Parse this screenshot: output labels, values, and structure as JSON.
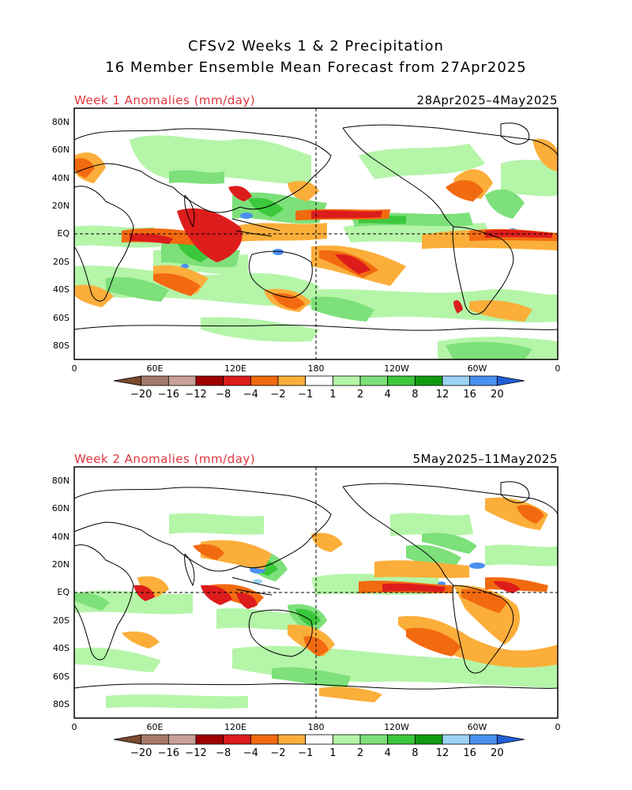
{
  "header": {
    "title_line1": "CFSv2 Weeks 1 & 2 Precipitation",
    "title_line2": "16 Member Ensemble Mean Forecast from 27Apr2025"
  },
  "panels": [
    {
      "label": "Week 1 Anomalies (mm/day)",
      "date_range": "28Apr2025–4May2025",
      "lat_ticks": [
        "80N",
        "60N",
        "40N",
        "20N",
        "EQ",
        "20S",
        "40S",
        "60S",
        "80S"
      ],
      "lon_ticks": [
        "0",
        "60E",
        "120E",
        "180",
        "120W",
        "60W",
        "0"
      ]
    },
    {
      "label": "Week 2 Anomalies (mm/day)",
      "date_range": "5May2025–11May2025",
      "lat_ticks": [
        "80N",
        "60N",
        "40N",
        "20N",
        "EQ",
        "20S",
        "40S",
        "60S",
        "80S"
      ],
      "lon_ticks": [
        "0",
        "60E",
        "120E",
        "180",
        "120W",
        "60W",
        "0"
      ]
    }
  ],
  "colorbar": {
    "labels": [
      "−20",
      "−16",
      "−12",
      "−8",
      "−4",
      "−2",
      "−1",
      "1",
      "2",
      "4",
      "8",
      "12",
      "16",
      "20"
    ],
    "colors": [
      "#7a4a2e",
      "#a67a6a",
      "#c9a098",
      "#a00000",
      "#dd1c1c",
      "#f26a10",
      "#fbae3a",
      "#ffffff",
      "#b4f5a8",
      "#7de07a",
      "#3cc83c",
      "#119b11",
      "#9ed2f5",
      "#4a90f0",
      "#1f5fd8"
    ]
  },
  "colors": {
    "title_red": "#e0353d",
    "dry_light": "#fbae3a",
    "dry_mid": "#f26a10",
    "dry_strong": "#dd1c1c",
    "wet_light": "#b4f5a8",
    "wet_mid": "#7de07a",
    "wet_strong": "#3cc83c",
    "wet_blue": "#4a90f0"
  }
}
